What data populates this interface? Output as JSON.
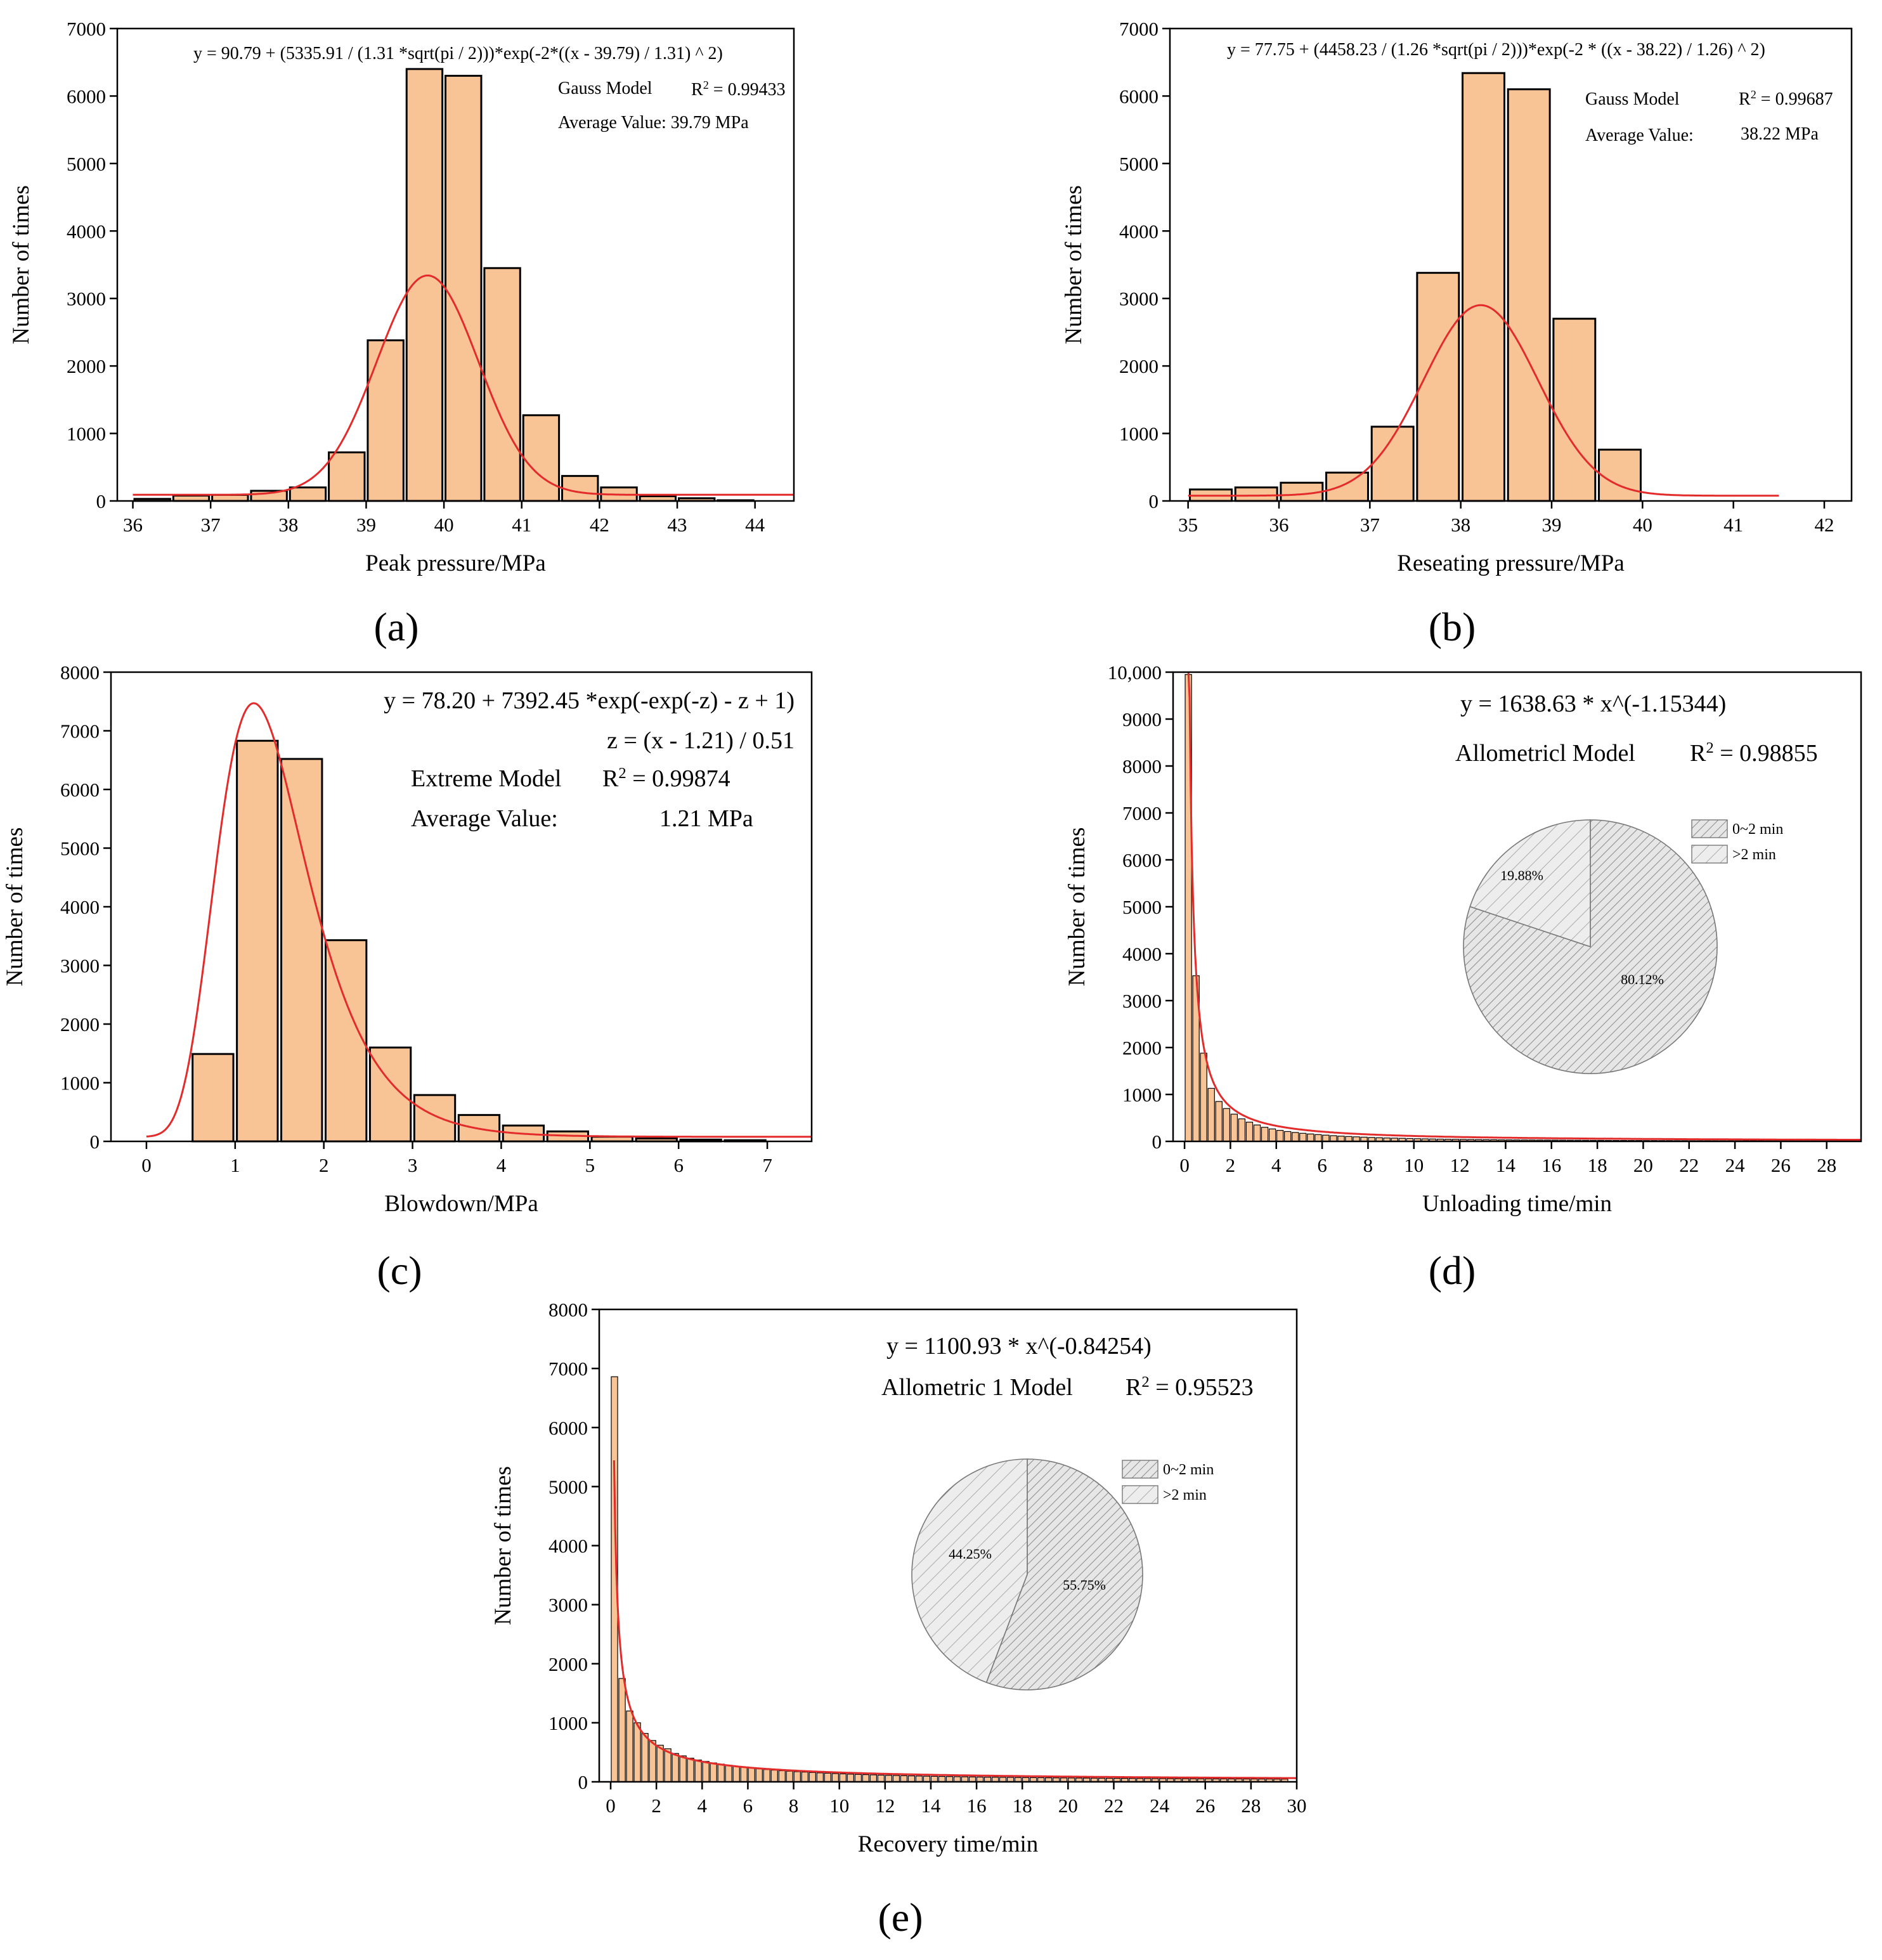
{
  "figure": {
    "panels": [
      "(a)",
      "(b)",
      "(c)",
      "(d)",
      "(e)"
    ]
  },
  "chart_data": [
    {
      "id": "a",
      "type": "bar",
      "panel_label": "(a)",
      "xlabel": "Peak pressure/MPa",
      "ylabel": "Number of times",
      "xlim": [
        35.8,
        44.5
      ],
      "ylim": [
        0,
        7000
      ],
      "xticks": [
        36,
        37,
        38,
        39,
        40,
        41,
        42,
        43,
        44
      ],
      "yticks": [
        0,
        1000,
        2000,
        3000,
        4000,
        5000,
        6000,
        7000
      ],
      "bin_width": 0.5,
      "bins": [
        36.0,
        36.5,
        37.0,
        37.5,
        38.0,
        38.5,
        39.0,
        39.5,
        40.0,
        40.5,
        41.0,
        41.5,
        42.0,
        42.5,
        43.0,
        43.5
      ],
      "values": [
        30,
        80,
        90,
        150,
        200,
        720,
        2380,
        6400,
        6300,
        3450,
        1270,
        370,
        200,
        70,
        40,
        10
      ],
      "fit": {
        "model": "gauss",
        "y0": 90.79,
        "A": 5335.91,
        "w": 1.31,
        "xc": 39.79,
        "x_range": [
          36.0,
          44.5
        ]
      },
      "annotations": {
        "equation": "y = 90.79 + (5335.91 / (1.31 *sqrt(pi / 2)))*exp(-2*((x - 39.79) / 1.31) ^ 2)",
        "model": "Gauss Model",
        "r2_prefix": "R",
        "r2_sup": "2",
        "r2_value": " = 0.99433",
        "average": "Average Value: 39.79 MPa"
      }
    },
    {
      "id": "b",
      "type": "bar",
      "panel_label": "(b)",
      "xlabel": "Reseating pressure/MPa",
      "ylabel": "Number of times",
      "xlim": [
        34.8,
        42.3
      ],
      "ylim": [
        0,
        7000
      ],
      "xticks": [
        35,
        36,
        37,
        38,
        39,
        40,
        41,
        42
      ],
      "yticks": [
        0,
        1000,
        2000,
        3000,
        4000,
        5000,
        6000,
        7000
      ],
      "bin_width": 0.5,
      "bins": [
        35.0,
        35.5,
        36.0,
        36.5,
        37.0,
        37.5,
        38.0,
        38.5,
        39.0,
        39.5,
        40.0
      ],
      "values": [
        170,
        200,
        270,
        420,
        1100,
        3380,
        6340,
        6100,
        2700,
        760,
        0
      ],
      "fit": {
        "model": "gauss",
        "y0": 77.75,
        "A": 4458.23,
        "w": 1.26,
        "xc": 38.22,
        "x_range": [
          35.0,
          41.5
        ]
      },
      "annotations": {
        "equation": "y = 77.75 + (4458.23 / (1.26 *sqrt(pi / 2)))*exp(-2 * ((x - 38.22) / 1.26) ^ 2)",
        "model": "Gauss Model",
        "r2_prefix": "R",
        "r2_sup": "2",
        "r2_value": " = 0.99687",
        "average_label": "Average Value:",
        "average_value": "38.22 MPa"
      }
    },
    {
      "id": "c",
      "type": "bar",
      "panel_label": "(c)",
      "xlabel": "Blowdown/MPa",
      "ylabel": "Number of times",
      "xlim": [
        -0.4,
        7.5
      ],
      "ylim": [
        0,
        8000
      ],
      "xticks": [
        0,
        1,
        2,
        3,
        4,
        5,
        6,
        7
      ],
      "yticks": [
        0,
        1000,
        2000,
        3000,
        4000,
        5000,
        6000,
        7000,
        8000
      ],
      "bin_width": 0.5,
      "bins": [
        0.5,
        1.0,
        1.5,
        2.0,
        2.5,
        3.0,
        3.5,
        4.0,
        4.5,
        5.0,
        5.5,
        6.0,
        6.5
      ],
      "values": [
        1490,
        6830,
        6520,
        3430,
        1600,
        790,
        450,
        270,
        170,
        80,
        50,
        30,
        20
      ],
      "fit": {
        "model": "extreme",
        "y0": 78.2,
        "A": 7392.45,
        "xc": 1.21,
        "w": 0.51,
        "x_range": [
          0.0,
          7.5
        ]
      },
      "annotations": {
        "equation": "y = 78.20 + 7392.45 *exp(-exp(-z) - z + 1)",
        "z_def": "z = (x - 1.21) / 0.51",
        "model": "Extreme Model",
        "r2_prefix": "R",
        "r2_sup": "2",
        "r2_value": " = 0.99874",
        "average_label": "Average Value:",
        "average_value": "1.21 MPa"
      }
    },
    {
      "id": "d",
      "type": "bar",
      "panel_label": "(d)",
      "xlabel": "Unloading time/min",
      "ylabel": "Number of times",
      "xlim": [
        -0.5,
        29.5
      ],
      "ylim": [
        0,
        10000
      ],
      "xticks": [
        0,
        2,
        4,
        6,
        8,
        10,
        12,
        14,
        16,
        18,
        20,
        22,
        24,
        26,
        28
      ],
      "yticks": [
        0,
        1000,
        2000,
        3000,
        4000,
        5000,
        6000,
        7000,
        8000,
        9000,
        10000
      ],
      "ytick_labels": [
        "0",
        "1000",
        "2000",
        "3000",
        "4000",
        "5000",
        "6000",
        "7000",
        "8000",
        "9000",
        "10,000"
      ],
      "bin_width": 0.333,
      "values": [
        9950,
        3530,
        1880,
        1130,
        850,
        700,
        580,
        480,
        410,
        350,
        300,
        265,
        235,
        210,
        190,
        172,
        158,
        145,
        133,
        122,
        112,
        104,
        97,
        90,
        84,
        78,
        73,
        69,
        65,
        61,
        57,
        54,
        51,
        48,
        46,
        44,
        42,
        40,
        38,
        36,
        35,
        33,
        32,
        31,
        30,
        29,
        28,
        27,
        26,
        25,
        24,
        23,
        22,
        21,
        21,
        20,
        19,
        19,
        18,
        18,
        17,
        17,
        16,
        16,
        15,
        15,
        14,
        14,
        14,
        13,
        13,
        13,
        12,
        12,
        12,
        12,
        11,
        11,
        11,
        11,
        10,
        10,
        10,
        10,
        10,
        10,
        10,
        10
      ],
      "fit": {
        "model": "allometric",
        "a": 1638.63,
        "b": -1.15344,
        "x_range": [
          0.17,
          29.5
        ]
      },
      "annotations": {
        "equation": "y = 1638.63 * x^(-1.15344)",
        "model": "Allometricl Model",
        "r2_prefix": "R",
        "r2_sup": "2",
        "r2_value": " = 0.98855"
      },
      "pie": {
        "slices": [
          {
            "label": "0~2 min",
            "value": 80.12,
            "text": "80.12%",
            "hatch": "dense"
          },
          {
            "label": ">2 min",
            "value": 19.88,
            "text": "19.88%",
            "hatch": "sparse"
          }
        ]
      }
    },
    {
      "id": "e",
      "type": "bar",
      "panel_label": "(e)",
      "xlabel": "Recovery time/min",
      "ylabel": "Number of times",
      "xlim": [
        -0.5,
        30.0
      ],
      "ylim": [
        0,
        8000
      ],
      "xticks": [
        0,
        2,
        4,
        6,
        8,
        10,
        12,
        14,
        16,
        18,
        20,
        22,
        24,
        26,
        28,
        30
      ],
      "yticks": [
        0,
        1000,
        2000,
        3000,
        4000,
        5000,
        6000,
        7000,
        8000
      ],
      "bin_width": 0.333,
      "values": [
        6860,
        1750,
        1200,
        1000,
        820,
        700,
        620,
        560,
        480,
        440,
        400,
        370,
        345,
        320,
        300,
        280,
        262,
        246,
        232,
        220,
        208,
        198,
        188,
        180,
        172,
        165,
        158,
        152,
        146,
        140,
        135,
        130,
        126,
        122,
        118,
        114,
        110,
        107,
        104,
        101,
        98,
        95,
        93,
        91,
        89,
        87,
        85,
        83,
        81,
        79,
        78,
        76,
        75,
        73,
        72,
        71,
        70,
        68,
        67,
        66,
        65,
        64,
        63,
        62,
        61,
        60,
        59,
        58,
        58,
        57,
        56,
        55,
        55,
        54,
        53,
        53,
        52,
        51,
        51,
        50,
        50,
        49,
        49,
        48,
        48,
        47,
        47,
        46,
        46
      ],
      "fit": {
        "model": "allometric",
        "a": 1100.93,
        "b": -0.84254,
        "x_range": [
          0.15,
          30.0
        ]
      },
      "annotations": {
        "equation": "y = 1100.93 * x^(-0.84254)",
        "model": "Allometric 1 Model",
        "r2_prefix": "R",
        "r2_sup": "2",
        "r2_value": " = 0.95523"
      },
      "pie": {
        "slices": [
          {
            "label": "0~2 min",
            "value": 55.75,
            "text": "55.75%",
            "hatch": "dense"
          },
          {
            "label": ">2 min",
            "value": 44.25,
            "text": "44.25%",
            "hatch": "sparse"
          }
        ]
      }
    }
  ],
  "colors": {
    "bar_fill": "#f9c495",
    "bar_stroke": "#000000",
    "fit_line": "#e32b2b",
    "pie_fill": "#e6e6e6",
    "hatch": "#8a8a8a"
  }
}
